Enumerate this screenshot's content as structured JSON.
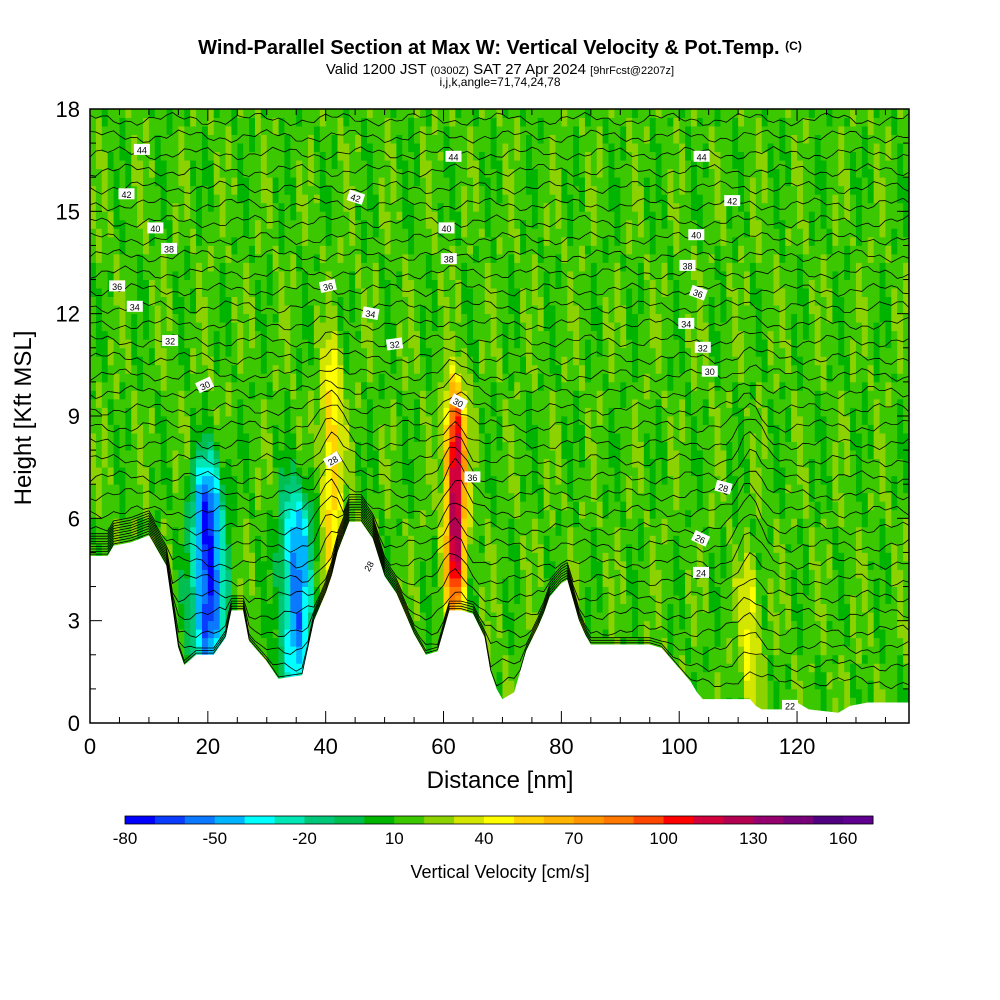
{
  "header": {
    "title": "Wind-Parallel Section at Max W: Vertical Velocity & Pot.Temp.",
    "title_mark": "(C)",
    "valid_prefix": "Valid 1200 JST",
    "valid_z": "(0300Z)",
    "valid_date": "SAT 27 Apr 2024",
    "valid_fcst": "[9hrFcst@2207z]",
    "indices": "i,j,k,angle=71,74,24,78"
  },
  "chart_data": {
    "type": "heatmap",
    "title": "Wind-Parallel Section at Max W: Vertical Velocity & Pot.Temp.",
    "xlabel": "Distance [nm]",
    "ylabel": "Height [Kft MSL]",
    "xlim": [
      0,
      139
    ],
    "ylim": [
      0,
      18
    ],
    "xticks": [
      "0",
      "20",
      "40",
      "60",
      "80",
      "100",
      "120"
    ],
    "xtick_values": [
      0,
      20,
      40,
      60,
      80,
      100,
      120
    ],
    "yticks": [
      "0",
      "3",
      "6",
      "9",
      "12",
      "15",
      "18"
    ],
    "ytick_values": [
      0,
      3,
      6,
      9,
      12,
      15,
      18
    ],
    "colorbar": {
      "label": "Vertical Velocity [cm/s]",
      "range": [
        -80,
        170
      ],
      "tick_labels": [
        "-80",
        "-50",
        "-20",
        "10",
        "40",
        "70",
        "100",
        "130",
        "160"
      ],
      "tick_values": [
        -80,
        -50,
        -20,
        10,
        40,
        70,
        100,
        130,
        160
      ],
      "colors": [
        "#0000ff",
        "#0a3cff",
        "#0a78ff",
        "#00b4ff",
        "#00ffff",
        "#00e6b4",
        "#00c878",
        "#00be50",
        "#00b400",
        "#3cc800",
        "#8cd200",
        "#d2e600",
        "#ffff00",
        "#ffd200",
        "#ffb400",
        "#ff9600",
        "#ff7800",
        "#ff4600",
        "#ff0000",
        "#d2003c",
        "#b40050",
        "#96006e",
        "#780078",
        "#500080",
        "#600090"
      ]
    },
    "contour_labels": {
      "left": [
        "44",
        "42",
        "40",
        "38",
        "36",
        "34",
        "32",
        "30"
      ],
      "center_left": [
        "42",
        "36",
        "34",
        "32",
        "28",
        "28"
      ],
      "center": [
        "44",
        "40",
        "38",
        "30",
        "36"
      ],
      "right": [
        "44",
        "42",
        "40",
        "38",
        "36",
        "34",
        "32",
        "30",
        "28",
        "26",
        "24",
        "22"
      ]
    },
    "updrafts_max_w": [
      {
        "x": 41,
        "top_kft": 10.2,
        "w": 60
      },
      {
        "x": 62,
        "top_kft": 9.0,
        "w": 130
      },
      {
        "x": 112,
        "top_kft": 4.0,
        "w": 45
      }
    ],
    "downdrafts_min_w": [
      {
        "x": 20,
        "top_kft": 7.2,
        "w": -75
      },
      {
        "x": 35,
        "top_kft": 6.5,
        "w": -55
      }
    ],
    "background_w": 15
  },
  "colors": {
    "terrain": "#ffffff",
    "frame": "#000000",
    "contour": "#000000"
  }
}
